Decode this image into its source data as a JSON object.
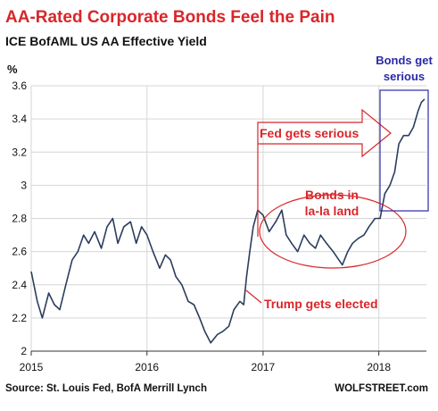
{
  "chart_data": {
    "type": "line",
    "title": "AA-Rated Corporate Bonds Feel the Pain",
    "subtitle": "ICE BofAML US AA Effective Yield",
    "ylabel": "%",
    "xlabel": "",
    "ylim": [
      2,
      3.6
    ],
    "xlim": [
      "2015-01-01",
      "2018-05-31"
    ],
    "yticks": [
      2,
      2.2,
      2.4,
      2.6,
      2.8,
      3,
      3.2,
      3.4,
      3.6
    ],
    "ytick_labels": [
      "2",
      "2.2",
      "2.4",
      "2.6",
      "2.8",
      "3",
      "3.2",
      "3.4",
      "3.6"
    ],
    "xticks": [
      "2015-01-01",
      "2016-01-01",
      "2017-01-01",
      "2018-01-01"
    ],
    "xtick_labels": [
      "2015",
      "2016",
      "2017",
      "2018"
    ],
    "grid": true,
    "series": [
      {
        "x": [
          "2015-01-01",
          "2015-01-20",
          "2015-02-05",
          "2015-02-25",
          "2015-03-15",
          "2015-04-01",
          "2015-04-20",
          "2015-05-10",
          "2015-05-28",
          "2015-06-15",
          "2015-07-01",
          "2015-07-20",
          "2015-08-10",
          "2015-08-28",
          "2015-09-15",
          "2015-10-01",
          "2015-10-20",
          "2015-11-10",
          "2015-11-28",
          "2015-12-15",
          "2016-01-01",
          "2016-01-20",
          "2016-02-10",
          "2016-02-28",
          "2016-03-15",
          "2016-04-01",
          "2016-04-20",
          "2016-05-10",
          "2016-05-28",
          "2016-06-15",
          "2016-07-01",
          "2016-07-20",
          "2016-08-10",
          "2016-08-28",
          "2016-09-15",
          "2016-10-01",
          "2016-10-20",
          "2016-11-01",
          "2016-11-10",
          "2016-11-20",
          "2016-12-01",
          "2016-12-15",
          "2017-01-01",
          "2017-01-20",
          "2017-02-10",
          "2017-03-01",
          "2017-03-15",
          "2017-04-01",
          "2017-04-20",
          "2017-05-10",
          "2017-05-28",
          "2017-06-15",
          "2017-07-01",
          "2017-07-20",
          "2017-08-10",
          "2017-08-28",
          "2017-09-08",
          "2017-09-25",
          "2017-10-10",
          "2017-10-28",
          "2017-11-15",
          "2017-12-01",
          "2017-12-20",
          "2018-01-05",
          "2018-01-20",
          "2018-02-05",
          "2018-02-20",
          "2018-03-05",
          "2018-03-20",
          "2018-04-05",
          "2018-04-20",
          "2018-05-05",
          "2018-05-15",
          "2018-05-25"
        ],
        "values": [
          2.48,
          2.3,
          2.2,
          2.35,
          2.28,
          2.25,
          2.4,
          2.55,
          2.6,
          2.7,
          2.65,
          2.72,
          2.62,
          2.75,
          2.8,
          2.65,
          2.75,
          2.78,
          2.65,
          2.75,
          2.7,
          2.6,
          2.5,
          2.58,
          2.55,
          2.45,
          2.4,
          2.3,
          2.28,
          2.2,
          2.12,
          2.05,
          2.1,
          2.12,
          2.15,
          2.25,
          2.3,
          2.28,
          2.45,
          2.6,
          2.75,
          2.85,
          2.82,
          2.72,
          2.78,
          2.85,
          2.7,
          2.65,
          2.6,
          2.7,
          2.65,
          2.62,
          2.7,
          2.65,
          2.6,
          2.55,
          2.52,
          2.6,
          2.65,
          2.68,
          2.7,
          2.75,
          2.8,
          2.8,
          2.95,
          3.0,
          3.08,
          3.25,
          3.3,
          3.3,
          3.35,
          3.45,
          3.5,
          3.52
        ]
      }
    ],
    "annotations": [
      {
        "text": "Fed gets serious"
      },
      {
        "text": "Bonds in"
      },
      {
        "text": "la-la land"
      },
      {
        "text": "Trump gets elected"
      },
      {
        "text": "Bonds get"
      },
      {
        "text": "serious"
      }
    ],
    "colors": {
      "title": "#d9262a",
      "line": "#2b3d5e",
      "annotation": "#d9262a",
      "blue_box": "#2a2aa8"
    }
  },
  "footer": {
    "source": "Source: St. Louis Fed, BofA Merrill Lynch",
    "brand": "WOLFSTREET.com"
  }
}
